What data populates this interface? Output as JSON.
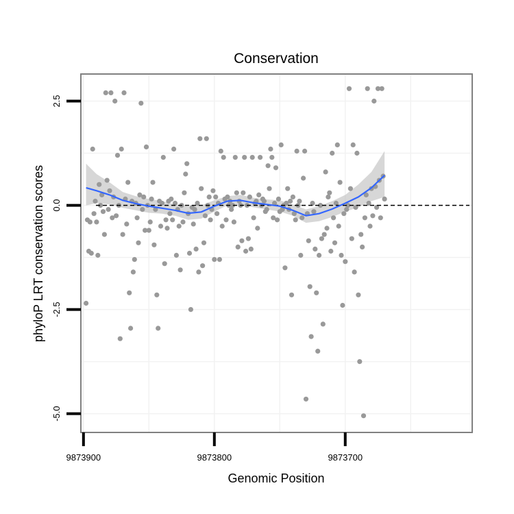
{
  "chart_data": {
    "type": "scatter",
    "title": "Conservation",
    "xlabel": "Genomic Position",
    "ylabel": "phyloP LRT conservation scores",
    "x_reversed": true,
    "xlim": [
      9873902,
      9873603
    ],
    "ylim": [
      -5.45,
      3.15
    ],
    "x_ticks": [
      9873900,
      9873800,
      9873700
    ],
    "x_tick_labels": [
      "9873900",
      "9873800",
      "9873700"
    ],
    "y_ticks": [
      -5.0,
      -2.5,
      0.0,
      2.5
    ],
    "y_tick_labels": [
      "-5.0",
      "-2.5",
      "0.0",
      "2.5"
    ],
    "reference_line_y": 0.0,
    "grid": true,
    "legend": "none",
    "colors": {
      "points": "#999999",
      "smooth_line": "#3366ff",
      "confidence_band": "#bdbdbd",
      "panel_border": "#808080",
      "grid": "#f2f2f2"
    },
    "series": [
      {
        "kind": "points",
        "points": [
          [
            9873898,
            -2.35
          ],
          [
            9873897,
            -0.35
          ],
          [
            9873896,
            -1.1
          ],
          [
            9873895,
            -0.4
          ],
          [
            9873894,
            -1.15
          ],
          [
            9873893,
            1.35
          ],
          [
            9873892,
            -0.2
          ],
          [
            9873891,
            0.1
          ],
          [
            9873890,
            -0.4
          ],
          [
            9873889,
            -1.2
          ],
          [
            9873888,
            0.5
          ],
          [
            9873887,
            0.0
          ],
          [
            9873886,
            0.25
          ],
          [
            9873885,
            -0.15
          ],
          [
            9873884,
            -0.7
          ],
          [
            9873883,
            2.7
          ],
          [
            9873882,
            0.6
          ],
          [
            9873881,
            -0.1
          ],
          [
            9873880,
            0.35
          ],
          [
            9873879,
            2.7
          ],
          [
            9873878,
            -0.3
          ],
          [
            9873877,
            0.2
          ],
          [
            9873876,
            2.5
          ],
          [
            9873875,
            -0.25
          ],
          [
            9873874,
            1.2
          ],
          [
            9873873,
            0.0
          ],
          [
            9873872,
            -3.2
          ],
          [
            9873871,
            1.35
          ],
          [
            9873870,
            -0.7
          ],
          [
            9873869,
            2.7
          ],
          [
            9873868,
            0.15
          ],
          [
            9873867,
            -0.45
          ],
          [
            9873866,
            0.55
          ],
          [
            9873865,
            -2.1
          ],
          [
            9873864,
            -2.95
          ],
          [
            9873863,
            0.1
          ],
          [
            9873862,
            -1.6
          ],
          [
            9873861,
            -1.3
          ],
          [
            9873860,
            0.05
          ],
          [
            9873859,
            -0.3
          ],
          [
            9873858,
            -0.9
          ],
          [
            9873857,
            0.25
          ],
          [
            9873856,
            2.45
          ],
          [
            9873855,
            -0.1
          ],
          [
            9873854,
            0.2
          ],
          [
            9873853,
            -0.6
          ],
          [
            9873852,
            1.4
          ],
          [
            9873851,
            0.0
          ],
          [
            9873850,
            -0.6
          ],
          [
            9873849,
            -0.4
          ],
          [
            9873848,
            0.15
          ],
          [
            9873847,
            0.55
          ],
          [
            9873846,
            -0.95
          ],
          [
            9873845,
            -0.1
          ],
          [
            9873844,
            -2.15
          ],
          [
            9873843,
            -2.95
          ],
          [
            9873842,
            0.1
          ],
          [
            9873841,
            -0.5
          ],
          [
            9873840,
            0.05
          ],
          [
            9873839,
            1.15
          ],
          [
            9873838,
            -1.4
          ],
          [
            9873837,
            -0.35
          ],
          [
            9873836,
            -0.55
          ],
          [
            9873835,
            0.1
          ],
          [
            9873834,
            -0.2
          ],
          [
            9873833,
            0.15
          ],
          [
            9873832,
            -0.35
          ],
          [
            9873831,
            1.35
          ],
          [
            9873830,
            0.05
          ],
          [
            9873829,
            -1.2
          ],
          [
            9873828,
            -0.1
          ],
          [
            9873827,
            -0.5
          ],
          [
            9873826,
            -1.55
          ],
          [
            9873825,
            0.0
          ],
          [
            9873824,
            -0.4
          ],
          [
            9873823,
            0.3
          ],
          [
            9873822,
            0.75
          ],
          [
            9873821,
            1.0
          ],
          [
            9873820,
            -0.2
          ],
          [
            9873819,
            -1.15
          ],
          [
            9873818,
            -2.5
          ],
          [
            9873817,
            -0.05
          ],
          [
            9873816,
            -0.45
          ],
          [
            9873815,
            -0.1
          ],
          [
            9873814,
            -1.05
          ],
          [
            9873813,
            0.05
          ],
          [
            9873812,
            -1.6
          ],
          [
            9873811,
            1.6
          ],
          [
            9873810,
            0.4
          ],
          [
            9873809,
            -1.45
          ],
          [
            9873808,
            -0.9
          ],
          [
            9873807,
            -0.25
          ],
          [
            9873806,
            1.6
          ],
          [
            9873805,
            0.0
          ],
          [
            9873804,
            0.2
          ],
          [
            9873803,
            -0.35
          ],
          [
            9873802,
            -0.1
          ],
          [
            9873801,
            0.35
          ],
          [
            9873800,
            -1.3
          ],
          [
            9873799,
            0.2
          ],
          [
            9873798,
            -0.2
          ],
          [
            9873797,
            0.05
          ],
          [
            9873796,
            -1.3
          ],
          [
            9873795,
            1.3
          ],
          [
            9873794,
            -0.5
          ],
          [
            9873793,
            1.15
          ],
          [
            9873792,
            0.15
          ],
          [
            9873791,
            -0.35
          ],
          [
            9873790,
            0.2
          ],
          [
            9873789,
            0.0
          ],
          [
            9873788,
            0.1
          ],
          [
            9873787,
            -0.1
          ],
          [
            9873786,
            0.0
          ],
          [
            9873785,
            -0.4
          ],
          [
            9873784,
            1.15
          ],
          [
            9873783,
            0.3
          ],
          [
            9873782,
            -1.0
          ],
          [
            9873781,
            0.1
          ],
          [
            9873780,
            0.0
          ],
          [
            9873779,
            -0.85
          ],
          [
            9873778,
            0.3
          ],
          [
            9873777,
            1.15
          ],
          [
            9873776,
            -1.1
          ],
          [
            9873775,
            0.0
          ],
          [
            9873774,
            -0.8
          ],
          [
            9873773,
            0.2
          ],
          [
            9873772,
            -1.05
          ],
          [
            9873771,
            1.15
          ],
          [
            9873770,
            -0.3
          ],
          [
            9873769,
            0.05
          ],
          [
            9873768,
            0.1
          ],
          [
            9873767,
            -0.55
          ],
          [
            9873766,
            0.25
          ],
          [
            9873765,
            1.15
          ],
          [
            9873764,
            0.0
          ],
          [
            9873763,
            0.15
          ],
          [
            9873762,
            0.1
          ],
          [
            9873761,
            -0.15
          ],
          [
            9873760,
            -0.1
          ],
          [
            9873759,
            0.95
          ],
          [
            9873758,
            0.4
          ],
          [
            9873757,
            1.35
          ],
          [
            9873756,
            1.15
          ],
          [
            9873755,
            -0.3
          ],
          [
            9873754,
            0.05
          ],
          [
            9873753,
            0.9
          ],
          [
            9873752,
            -0.35
          ],
          [
            9873751,
            0.15
          ],
          [
            9873750,
            -0.15
          ],
          [
            9873749,
            1.45
          ],
          [
            9873748,
            -0.1
          ],
          [
            9873747,
            0.0
          ],
          [
            9873746,
            -1.5
          ],
          [
            9873745,
            0.05
          ],
          [
            9873744,
            0.4
          ],
          [
            9873743,
            -0.1
          ],
          [
            9873742,
            0.1
          ],
          [
            9873741,
            -2.15
          ],
          [
            9873740,
            0.2
          ],
          [
            9873739,
            -0.2
          ],
          [
            9873738,
            -0.35
          ],
          [
            9873737,
            1.3
          ],
          [
            9873736,
            0.0
          ],
          [
            9873735,
            0.1
          ],
          [
            9873734,
            -1.2
          ],
          [
            9873733,
            -0.3
          ],
          [
            9873732,
            0.65
          ],
          [
            9873731,
            1.3
          ],
          [
            9873730,
            -4.65
          ],
          [
            9873729,
            -0.2
          ],
          [
            9873728,
            -0.85
          ],
          [
            9873727,
            -1.95
          ],
          [
            9873726,
            -3.15
          ],
          [
            9873725,
            0.05
          ],
          [
            9873724,
            -0.15
          ],
          [
            9873723,
            -1.05
          ],
          [
            9873722,
            -2.1
          ],
          [
            9873721,
            -3.5
          ],
          [
            9873720,
            -1.2
          ],
          [
            9873719,
            0.0
          ],
          [
            9873718,
            -0.8
          ],
          [
            9873717,
            -2.85
          ],
          [
            9873716,
            -0.7
          ],
          [
            9873715,
            0.8
          ],
          [
            9873714,
            -0.55
          ],
          [
            9873713,
            0.2
          ],
          [
            9873712,
            0.3
          ],
          [
            9873711,
            -1.1
          ],
          [
            9873710,
            1.25
          ],
          [
            9873709,
            -0.3
          ],
          [
            9873708,
            -0.9
          ],
          [
            9873707,
            0.05
          ],
          [
            9873706,
            1.45
          ],
          [
            9873705,
            -0.5
          ],
          [
            9873704,
            0.55
          ],
          [
            9873703,
            -1.2
          ],
          [
            9873702,
            -2.4
          ],
          [
            9873701,
            -0.2
          ],
          [
            9873700,
            -1.35
          ],
          [
            9873699,
            -0.1
          ],
          [
            9873698,
            0.0
          ],
          [
            9873697,
            2.8
          ],
          [
            9873696,
            0.4
          ],
          [
            9873695,
            -0.8
          ],
          [
            9873694,
            1.45
          ],
          [
            9873693,
            -1.6
          ],
          [
            9873692,
            -0.05
          ],
          [
            9873691,
            1.25
          ],
          [
            9873690,
            -2.15
          ],
          [
            9873689,
            -3.75
          ],
          [
            9873688,
            -0.7
          ],
          [
            9873687,
            -1.0
          ],
          [
            9873686,
            -5.05
          ],
          [
            9873685,
            -0.3
          ],
          [
            9873684,
            0.25
          ],
          [
            9873683,
            2.8
          ],
          [
            9873682,
            0.05
          ],
          [
            9873681,
            -0.5
          ],
          [
            9873680,
            0.4
          ],
          [
            9873679,
            -0.25
          ],
          [
            9873678,
            2.5
          ],
          [
            9873677,
            0.45
          ],
          [
            9873676,
            -0.05
          ],
          [
            9873675,
            2.8
          ],
          [
            9873674,
            0.6
          ],
          [
            9873673,
            -0.3
          ],
          [
            9873672,
            2.8
          ],
          [
            9873671,
            0.7
          ],
          [
            9873670,
            0.15
          ]
        ]
      },
      {
        "kind": "smooth",
        "x": [
          9873898,
          9873890,
          9873880,
          9873870,
          9873860,
          9873850,
          9873840,
          9873830,
          9873820,
          9873810,
          9873800,
          9873790,
          9873780,
          9873770,
          9873760,
          9873750,
          9873740,
          9873730,
          9873720,
          9873710,
          9873700,
          9873690,
          9873680,
          9873670
        ],
        "y": [
          0.42,
          0.35,
          0.25,
          0.12,
          0.04,
          -0.02,
          -0.07,
          -0.12,
          -0.19,
          -0.16,
          -0.02,
          0.1,
          0.12,
          0.06,
          0.02,
          -0.02,
          -0.12,
          -0.25,
          -0.2,
          -0.09,
          0.05,
          0.2,
          0.42,
          0.72
        ],
        "lower": [
          0.0,
          0.05,
          0.02,
          -0.06,
          -0.12,
          -0.18,
          -0.2,
          -0.25,
          -0.35,
          -0.32,
          -0.15,
          0.0,
          0.02,
          -0.05,
          -0.1,
          -0.15,
          -0.25,
          -0.42,
          -0.38,
          -0.28,
          -0.15,
          -0.05,
          0.1,
          0.2
        ],
        "upper": [
          1.0,
          0.75,
          0.55,
          0.32,
          0.22,
          0.15,
          0.1,
          0.02,
          -0.03,
          0.0,
          0.12,
          0.22,
          0.25,
          0.18,
          0.14,
          0.12,
          0.02,
          -0.1,
          -0.02,
          0.1,
          0.25,
          0.5,
          0.8,
          1.3
        ]
      }
    ]
  }
}
